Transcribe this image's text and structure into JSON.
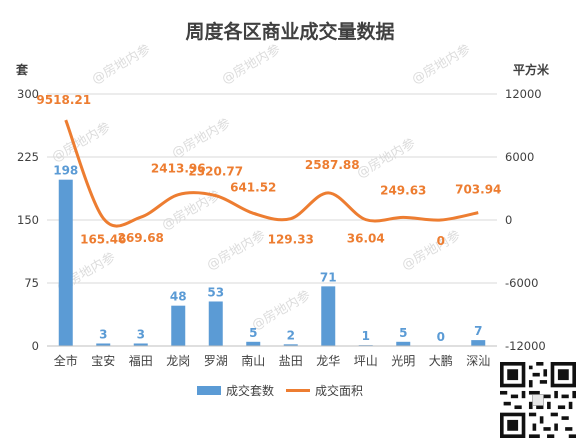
{
  "chart_data": {
    "type": "bar+line",
    "title": "周度各区商业成交量数据",
    "left_axis_unit": "套",
    "right_axis_unit": "平方米",
    "categories": [
      "全市",
      "宝安",
      "福田",
      "龙岗",
      "罗湖",
      "南山",
      "盐田",
      "龙华",
      "坪山",
      "光明",
      "大鹏",
      "深汕"
    ],
    "series": [
      {
        "name": "成交套数",
        "type": "bar",
        "axis": "left",
        "color": "#5b9bd5",
        "values": [
          198,
          3,
          3,
          48,
          53,
          5,
          2,
          71,
          1,
          5,
          0,
          7
        ],
        "labels": [
          "198",
          "3",
          "3",
          "48",
          "53",
          "5",
          "2",
          "71",
          "1",
          "5",
          "0",
          "7"
        ]
      },
      {
        "name": "成交面积",
        "type": "line",
        "axis": "right",
        "color": "#ed7d31",
        "values": [
          9518.21,
          165.46,
          269.68,
          2413.96,
          2320.77,
          641.52,
          129.33,
          2587.88,
          36.04,
          249.63,
          0,
          703.94
        ],
        "labels": [
          "9518.21",
          "165.46",
          "269.68",
          "2413.96",
          "2320.77",
          "641.52",
          "129.33",
          "2587.88",
          "36.04",
          "249.63",
          "0",
          "703.94"
        ]
      }
    ],
    "left_axis": {
      "range": [
        0,
        300
      ],
      "ticks": [
        "0",
        "75",
        "150",
        "225",
        "300"
      ]
    },
    "right_axis": {
      "range": [
        -12000,
        12000
      ],
      "ticks": [
        "-12000",
        "-6000",
        "0",
        "6000",
        "12000"
      ]
    },
    "legend_position": "bottom",
    "gridlines": true
  },
  "watermark": "@房地内参",
  "colors": {
    "bar": "#5b9bd5",
    "line": "#ed7d31",
    "bar_label": "#5b9bd5",
    "line_label": "#ed7d31",
    "axis_text": "#404040",
    "grid": "#d9d9d9"
  }
}
